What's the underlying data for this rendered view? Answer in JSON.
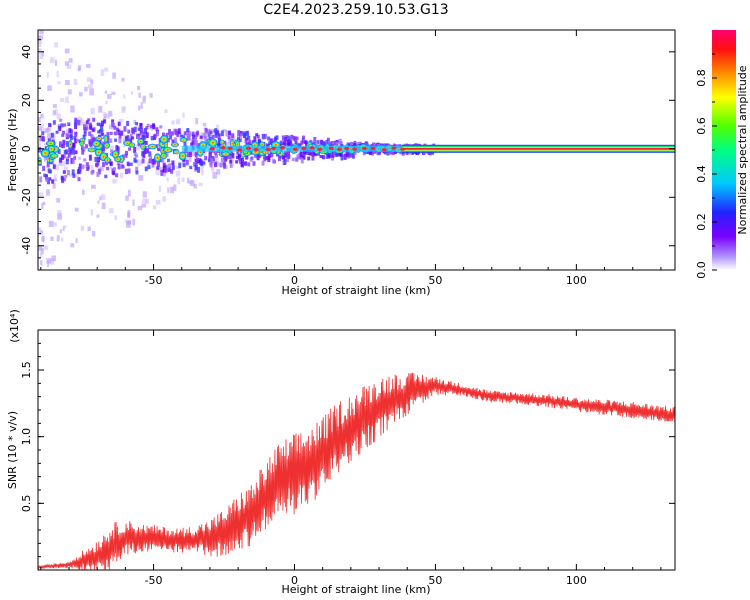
{
  "title": "C2E4.2023.259.10.53.G13",
  "chart_data": [
    {
      "type": "heatmap",
      "xlabel": "Height of straight line (km)",
      "ylabel": "Frequency (Hz)",
      "xlim": [
        -91,
        135
      ],
      "ylim": [
        -50,
        49
      ],
      "xticks": [
        -50,
        0,
        50,
        100
      ],
      "yticks": [
        -40,
        -20,
        0,
        20,
        40
      ],
      "ridge_frequency_hz": 0,
      "colorbar": {
        "label": "Normalized spectral amplitude",
        "range": [
          0,
          1
        ],
        "ticks": [
          "0.0",
          "0.2",
          "0.4",
          "0.6",
          "0.8"
        ]
      }
    },
    {
      "type": "line",
      "xlabel": "Height of straight line (km)",
      "ylabel": "SNR (10 * v/v)",
      "y_multiplier": "(x10⁴)",
      "xlim": [
        -91,
        135
      ],
      "ylim": [
        0,
        1.8
      ],
      "xticks": [
        -50,
        0,
        50,
        100
      ],
      "yticks": [
        "0.5",
        "1.0",
        "1.5"
      ],
      "series_color": "#ee3030",
      "trend": {
        "x": [
          -91,
          -80,
          -70,
          -60,
          -50,
          -40,
          -30,
          -25,
          -20,
          -15,
          -10,
          -5,
          0,
          5,
          10,
          15,
          20,
          25,
          30,
          35,
          40,
          45,
          50,
          60,
          70,
          80,
          90,
          100,
          110,
          120,
          135
        ],
        "y": [
          0.02,
          0.04,
          0.1,
          0.24,
          0.24,
          0.22,
          0.24,
          0.28,
          0.36,
          0.42,
          0.56,
          0.68,
          0.72,
          0.78,
          0.86,
          0.98,
          1.06,
          1.14,
          1.22,
          1.28,
          1.32,
          1.36,
          1.38,
          1.35,
          1.3,
          1.29,
          1.27,
          1.24,
          1.22,
          1.2,
          1.16
        ]
      },
      "amplitude": {
        "x": [
          -91,
          -80,
          -72,
          -65,
          -55,
          -45,
          -35,
          -25,
          -10,
          0,
          10,
          20,
          30,
          40,
          50,
          60,
          80,
          100,
          120,
          135
        ],
        "y": [
          0.01,
          0.03,
          0.12,
          0.2,
          0.12,
          0.1,
          0.12,
          0.2,
          0.3,
          0.34,
          0.32,
          0.3,
          0.26,
          0.18,
          0.08,
          0.05,
          0.05,
          0.06,
          0.07,
          0.07
        ]
      }
    }
  ]
}
